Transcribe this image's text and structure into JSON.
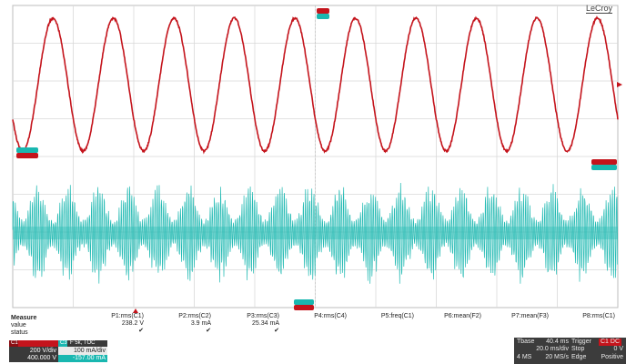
{
  "brand": "LeCroy",
  "colors": {
    "c1": "#c4141c",
    "c3": "#19b7b0",
    "grid": "#d9d9d9",
    "panel_dark": "#3a3a3a"
  },
  "ref_labels": {
    "c1_ground": "",
    "c3_ground": "",
    "trigger_top": "",
    "trigger_bottom": ""
  },
  "measure": {
    "row_labels": [
      "Measure",
      "value",
      "status"
    ],
    "columns": [
      {
        "name": "P1:rms(C1)",
        "value": "238.2 V",
        "status": "✔"
      },
      {
        "name": "P2:rms(C2)",
        "value": "3.9 mA",
        "status": "✔"
      },
      {
        "name": "P3:rms(C3)",
        "value": "25.34 mA",
        "status": "✔"
      },
      {
        "name": "P4:rms(C4)",
        "value": "",
        "status": ""
      },
      {
        "name": "P5:freq(C1)",
        "value": "",
        "status": ""
      },
      {
        "name": "P6:mean(F2)",
        "value": "",
        "status": ""
      },
      {
        "name": "P7:mean(F3)",
        "value": "",
        "status": ""
      },
      {
        "name": "P8:rms(C1)",
        "value": "",
        "status": ""
      }
    ]
  },
  "channels": {
    "c1": {
      "label": "C1",
      "scale": "200 V/div",
      "offset": "400.000 V"
    },
    "c3": {
      "label": "C3",
      "mode": "F 5k, TOC",
      "scale": "100 mA/div",
      "offset": "-157.00 mA"
    }
  },
  "timebase": {
    "tbase_label": "Tbase",
    "tbase_value": "40.4 ms",
    "trigger_label": "Trigger",
    "trigger_badge": "C1 DC",
    "time_per_div": "20.0 ms/div",
    "trigger_mode": "Stop",
    "trigger_level": "0 V",
    "samples": "4 MS",
    "sample_rate": "20 MS/s",
    "trigger_type": "Edge",
    "trigger_slope": "Positive"
  }
}
